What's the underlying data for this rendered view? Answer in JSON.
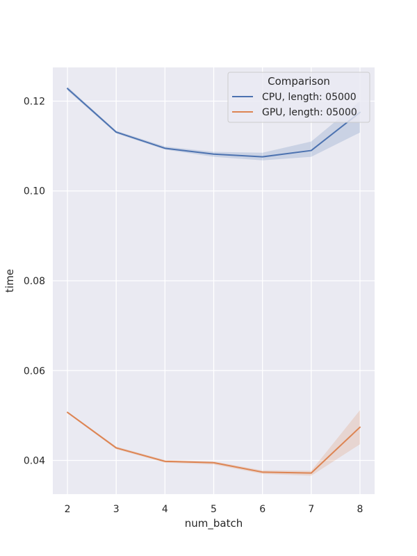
{
  "chart_data": {
    "type": "line",
    "xlabel": "num_batch",
    "ylabel": "time",
    "x": [
      2,
      3,
      4,
      5,
      6,
      7,
      8
    ],
    "xlim": [
      1.7,
      8.3
    ],
    "ylim": [
      0.0325,
      0.1275
    ],
    "xticks": [
      "2",
      "3",
      "4",
      "5",
      "6",
      "7",
      "8"
    ],
    "yticks": [
      "0.04",
      "0.06",
      "0.08",
      "0.10",
      "0.12"
    ],
    "ytick_values": [
      0.04,
      0.06,
      0.08,
      0.1,
      0.12
    ],
    "grid": true,
    "legend": {
      "title": "Comparison",
      "placement": "top-right"
    },
    "series": [
      {
        "name": "CPU, length: 05000",
        "color": "#4c72b0",
        "values": [
          0.1228,
          0.1131,
          0.1095,
          0.1082,
          0.1076,
          0.109,
          0.1175
        ],
        "ci_low": [
          0.1224,
          0.1128,
          0.1092,
          0.1076,
          0.1068,
          0.1076,
          0.113
        ],
        "ci_high": [
          0.1232,
          0.1134,
          0.1099,
          0.1087,
          0.1085,
          0.111,
          0.12
        ]
      },
      {
        "name": "GPU, length: 05000",
        "color": "#dd8452",
        "values": [
          0.0507,
          0.0428,
          0.0398,
          0.0395,
          0.0374,
          0.0372,
          0.0474
        ],
        "ci_low": [
          0.0505,
          0.0425,
          0.0395,
          0.0391,
          0.037,
          0.0366,
          0.0436
        ],
        "ci_high": [
          0.0509,
          0.0431,
          0.0401,
          0.0398,
          0.0378,
          0.0377,
          0.0512
        ]
      }
    ]
  }
}
